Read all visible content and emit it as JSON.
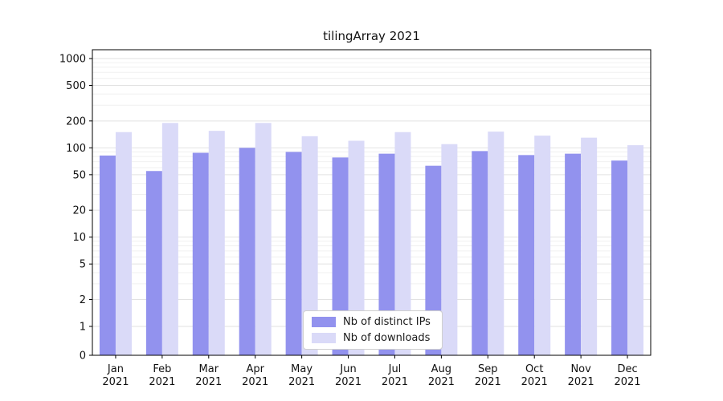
{
  "title": "tilingArray 2021",
  "chart_data": {
    "type": "bar",
    "title": "tilingArray 2021",
    "scale": "log",
    "grid": true,
    "legend_position": "lower center",
    "categories": [
      "Jan 2021",
      "Feb 2021",
      "Mar 2021",
      "Apr 2021",
      "May 2021",
      "Jun 2021",
      "Jul 2021",
      "Aug 2021",
      "Sep 2021",
      "Oct 2021",
      "Nov 2021",
      "Dec 2021"
    ],
    "series": [
      {
        "name": "Nb of distinct IPs",
        "color": "#9292ee",
        "values": [
          82,
          55,
          88,
          100,
          90,
          78,
          86,
          63,
          92,
          83,
          86,
          72
        ]
      },
      {
        "name": "Nb of downloads",
        "color": "#dadaf8",
        "values": [
          150,
          190,
          155,
          190,
          135,
          120,
          150,
          110,
          152,
          137,
          130,
          107
        ]
      }
    ],
    "y_ticks": [
      0,
      1,
      2,
      5,
      10,
      20,
      50,
      100,
      200,
      500,
      1000
    ],
    "ylim": [
      0,
      1000
    ],
    "xlabel": "",
    "ylabel": ""
  },
  "colors": {
    "axis": "#000000",
    "grid_major": "#e2e2e2",
    "grid_minor": "#f0f0f0",
    "text": "#111111"
  }
}
